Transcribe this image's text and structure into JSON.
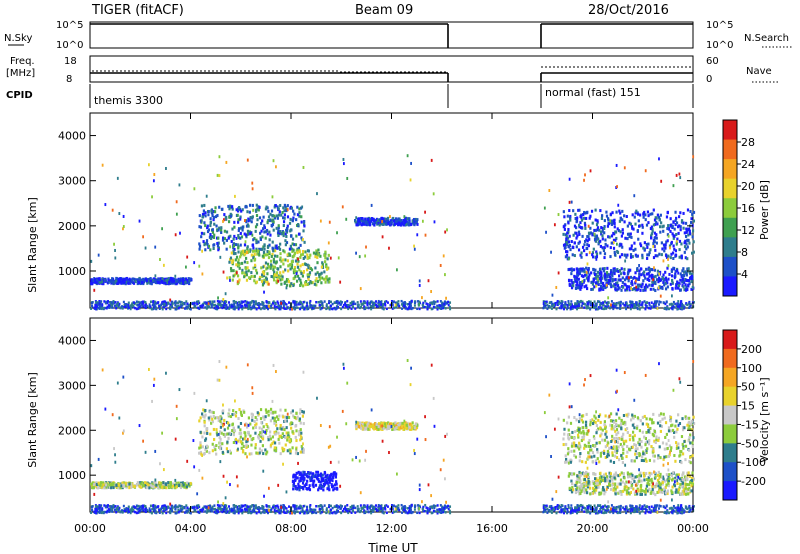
{
  "header": {
    "title": "TIGER (fitACF)",
    "beam": "Beam 09",
    "date": "28/Oct/2016"
  },
  "top_panels": {
    "nsky_label": "N.Sky",
    "nsky_ticks": [
      "10^5",
      "10^0"
    ],
    "nsearch_label": "N.Search",
    "nsearch_ticks": [
      "10^5",
      "10^0"
    ],
    "freq_label": "Freq.",
    "freq_unit": "[MHz]",
    "freq_ticks": [
      "18",
      "8"
    ],
    "nave_label": "Nave",
    "nave_ticks": [
      "60",
      "0"
    ],
    "cpid_label": "CPID",
    "cpid_segments": [
      {
        "label": "themis 3300",
        "start_h": 0,
        "end_h": 14.3
      },
      {
        "label": "normal (fast) 151",
        "start_h": 18.0,
        "end_h": 24.0
      }
    ]
  },
  "x_axis": {
    "label": "Time UT",
    "ticks": [
      "00:00",
      "04:00",
      "08:00",
      "12:00",
      "16:00",
      "20:00",
      "00:00"
    ]
  },
  "chart_data": [
    {
      "type": "heatmap",
      "name": "power",
      "ylabel": "Slant Range [km]",
      "y_ticks": [
        "1000",
        "2000",
        "3000",
        "4000"
      ],
      "ylim": [
        180,
        4500
      ],
      "xlim_hours": [
        0,
        24
      ],
      "colorbar_label": "Power [dB]",
      "colorbar_ticks": [
        "4",
        "8",
        "12",
        "16",
        "20",
        "24",
        "28"
      ],
      "colorbar_colors": [
        "#1a1aff",
        "#1d50c8",
        "#2e7d8c",
        "#3fa050",
        "#8ccc3c",
        "#e8d22c",
        "#f5a623",
        "#f06a1e",
        "#d81a1a"
      ],
      "bands": [
        {
          "t0": 0.0,
          "t1": 4.0,
          "r0": 750,
          "r1": 870,
          "c": 1
        },
        {
          "t0": 4.3,
          "t1": 8.5,
          "r0": 1500,
          "r1": 2500,
          "c": 2
        },
        {
          "t0": 5.5,
          "t1": 9.5,
          "r0": 700,
          "r1": 1500,
          "c": 4
        },
        {
          "t0": 10.5,
          "t1": 13.0,
          "r0": 2050,
          "r1": 2200,
          "c": 1
        },
        {
          "t0": 18.8,
          "t1": 24.0,
          "r0": 1300,
          "r1": 2400,
          "c": 1
        },
        {
          "t0": 19.0,
          "t1": 24.0,
          "r0": 600,
          "r1": 1100,
          "c": 1
        }
      ]
    },
    {
      "type": "heatmap",
      "name": "velocity",
      "ylabel": "Slant Range [km]",
      "y_ticks": [
        "1000",
        "2000",
        "3000",
        "4000"
      ],
      "ylim": [
        180,
        4500
      ],
      "xlim_hours": [
        0,
        24
      ],
      "colorbar_label": "Velocity [m s⁻¹]",
      "colorbar_ticks": [
        "200",
        "100",
        "50",
        "15",
        "-15",
        "-50",
        "-100",
        "-200"
      ],
      "colorbar_colors": [
        "#1a1aff",
        "#1d50c8",
        "#2e7d8c",
        "#8ccc3c",
        "#c8c8c8",
        "#e8d22c",
        "#f5a623",
        "#f06a1e",
        "#d81a1a"
      ],
      "bands": [
        {
          "t0": 0.0,
          "t1": 4.0,
          "r0": 750,
          "r1": 870,
          "c": 4
        },
        {
          "t0": 4.3,
          "t1": 8.5,
          "r0": 1500,
          "r1": 2500,
          "c": 4
        },
        {
          "t0": 8.0,
          "t1": 9.8,
          "r0": 700,
          "r1": 1100,
          "c": 0
        },
        {
          "t0": 10.5,
          "t1": 13.0,
          "r0": 2050,
          "r1": 2200,
          "c": 5
        },
        {
          "t0": 18.8,
          "t1": 24.0,
          "r0": 1300,
          "r1": 2400,
          "c": 4
        },
        {
          "t0": 19.0,
          "t1": 24.0,
          "r0": 600,
          "r1": 1100,
          "c": 4
        }
      ]
    }
  ]
}
